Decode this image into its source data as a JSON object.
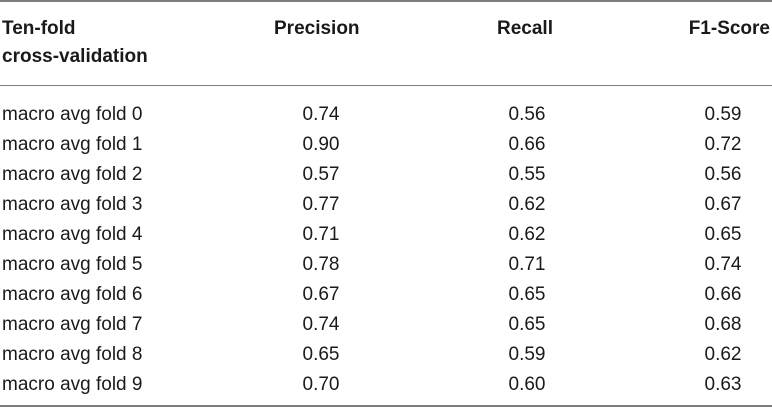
{
  "table": {
    "headers": {
      "first_line1": "Ten-fold",
      "first_line2": "cross-validation",
      "precision": "Precision",
      "recall": "Recall",
      "f1": "F1-Score"
    },
    "rows": [
      {
        "label": "macro avg fold 0",
        "precision": "0.74",
        "recall": "0.56",
        "f1": "0.59"
      },
      {
        "label": "macro avg fold 1",
        "precision": "0.90",
        "recall": "0.66",
        "f1": "0.72"
      },
      {
        "label": "macro avg fold 2",
        "precision": "0.57",
        "recall": "0.55",
        "f1": "0.56"
      },
      {
        "label": "macro avg fold 3",
        "precision": "0.77",
        "recall": "0.62",
        "f1": "0.67"
      },
      {
        "label": "macro avg fold 4",
        "precision": "0.71",
        "recall": "0.62",
        "f1": "0.65"
      },
      {
        "label": "macro avg fold 5",
        "precision": "0.78",
        "recall": "0.71",
        "f1": "0.74"
      },
      {
        "label": "macro avg fold 6",
        "precision": "0.67",
        "recall": "0.65",
        "f1": "0.66"
      },
      {
        "label": "macro avg fold 7",
        "precision": "0.74",
        "recall": "0.65",
        "f1": "0.68"
      },
      {
        "label": "macro avg fold 8",
        "precision": "0.65",
        "recall": "0.59",
        "f1": "0.62"
      },
      {
        "label": "macro avg fold 9",
        "precision": "0.70",
        "recall": "0.60",
        "f1": "0.63"
      }
    ]
  },
  "colors": {
    "text": "#1a1a1a",
    "rules": "#7d7d7d",
    "background": "#ffffff"
  }
}
